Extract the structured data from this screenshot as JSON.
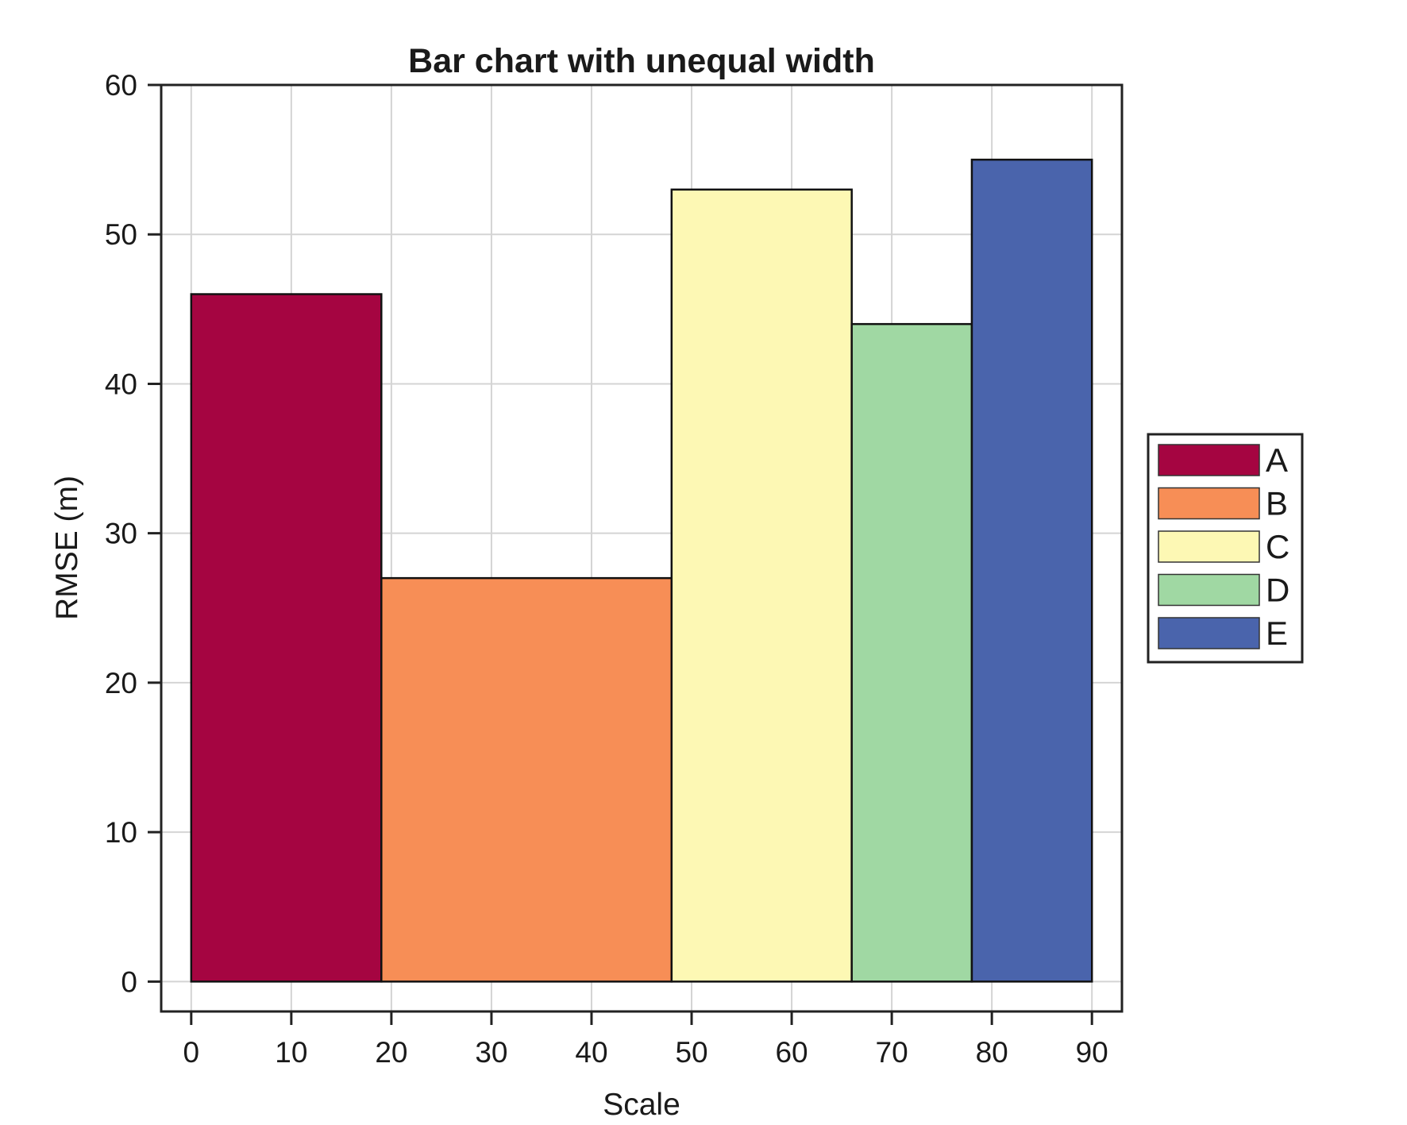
{
  "chart_data": {
    "type": "bar",
    "title": "Bar chart with unequal width",
    "xlabel": "Scale",
    "ylabel": "RMSE (m)",
    "xlim": [
      -3,
      93
    ],
    "ylim": [
      -2,
      60
    ],
    "xticks": [
      0,
      10,
      20,
      30,
      40,
      50,
      60,
      70,
      80,
      90
    ],
    "yticks": [
      0,
      10,
      20,
      30,
      40,
      50,
      60
    ],
    "grid": true,
    "legend_position": "right",
    "bars": [
      {
        "name": "A",
        "x0": 0,
        "x1": 19,
        "value": 46,
        "color": "#a50541"
      },
      {
        "name": "B",
        "x0": 19,
        "x1": 48,
        "value": 27,
        "color": "#f78e56"
      },
      {
        "name": "C",
        "x0": 48,
        "x1": 66,
        "value": 53,
        "color": "#fdf8b4"
      },
      {
        "name": "D",
        "x0": 66,
        "x1": 78,
        "value": 44,
        "color": "#a0d8a3"
      },
      {
        "name": "E",
        "x0": 78,
        "x1": 90,
        "value": 55,
        "color": "#4a64ac"
      }
    ]
  }
}
